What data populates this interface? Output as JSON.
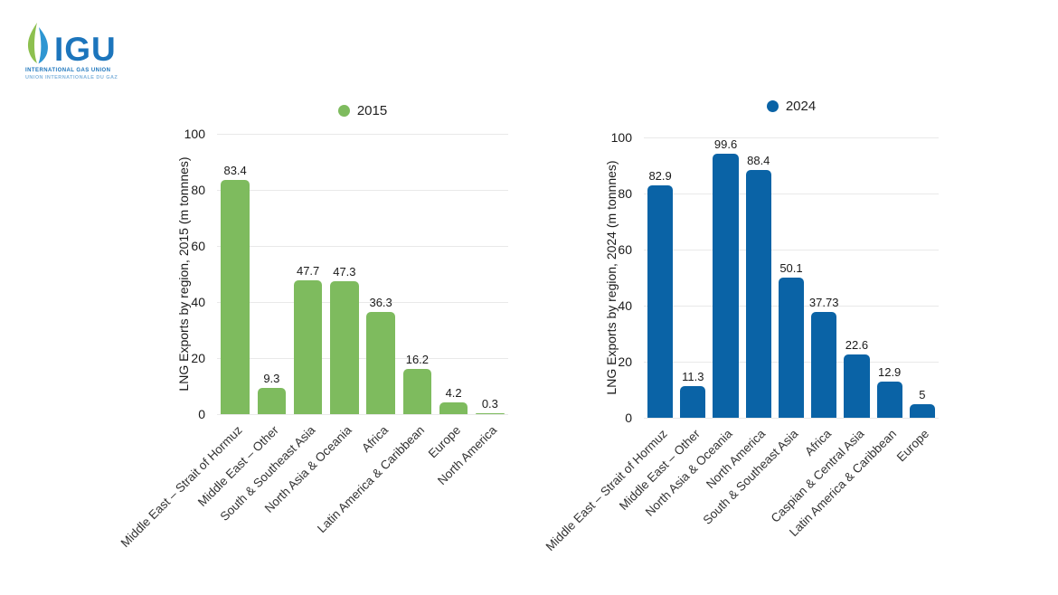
{
  "logo": {
    "acronym": "IGU",
    "line1": "INTERNATIONAL GAS UNION",
    "line2": "UNION INTERNATIONALE DU GAZ",
    "brand_blue": "#1C75BC",
    "brand_light_blue": "#85B6DD",
    "brand_green": "#8DC04F"
  },
  "chart_data": [
    {
      "type": "bar",
      "legend_label": "2015",
      "legend_position": "top",
      "color": "#7EBB5E",
      "ylabel": "LNG Exports by region, 2015 (m tonnnes)",
      "xlabel": "",
      "title": "",
      "ylim": [
        0,
        100
      ],
      "yticks": [
        0,
        20,
        40,
        60,
        80,
        100
      ],
      "grid": true,
      "categories": [
        "Middle East – Strait of Hormuz",
        "Middle East – Other",
        "South & Southeast Asia",
        "North Asia & Oceania",
        "Africa",
        "Latin America & Caribbean",
        "Europe",
        "North America"
      ],
      "values": [
        83.4,
        9.3,
        47.7,
        47.3,
        36.3,
        16.2,
        4.2,
        0.3
      ]
    },
    {
      "type": "bar",
      "legend_label": "2024",
      "legend_position": "top",
      "color": "#0A63A6",
      "ylabel": "LNG Exports by region, 2024 (m tonnnes)",
      "xlabel": "",
      "title": "",
      "ylim": [
        0,
        100
      ],
      "yticks": [
        0,
        20,
        40,
        60,
        80,
        100
      ],
      "grid": true,
      "categories": [
        "Middle East – Strait of Hormuz",
        "Middle East – Other",
        "North Asia & Oceania",
        "North America",
        "South & Southeast Asia",
        "Africa",
        "Caspian & Central Asia",
        "Latin America & Caribbean",
        "Europe"
      ],
      "values": [
        82.9,
        11.3,
        99.6,
        88.4,
        50.1,
        37.73,
        22.6,
        12.9,
        5
      ]
    }
  ]
}
